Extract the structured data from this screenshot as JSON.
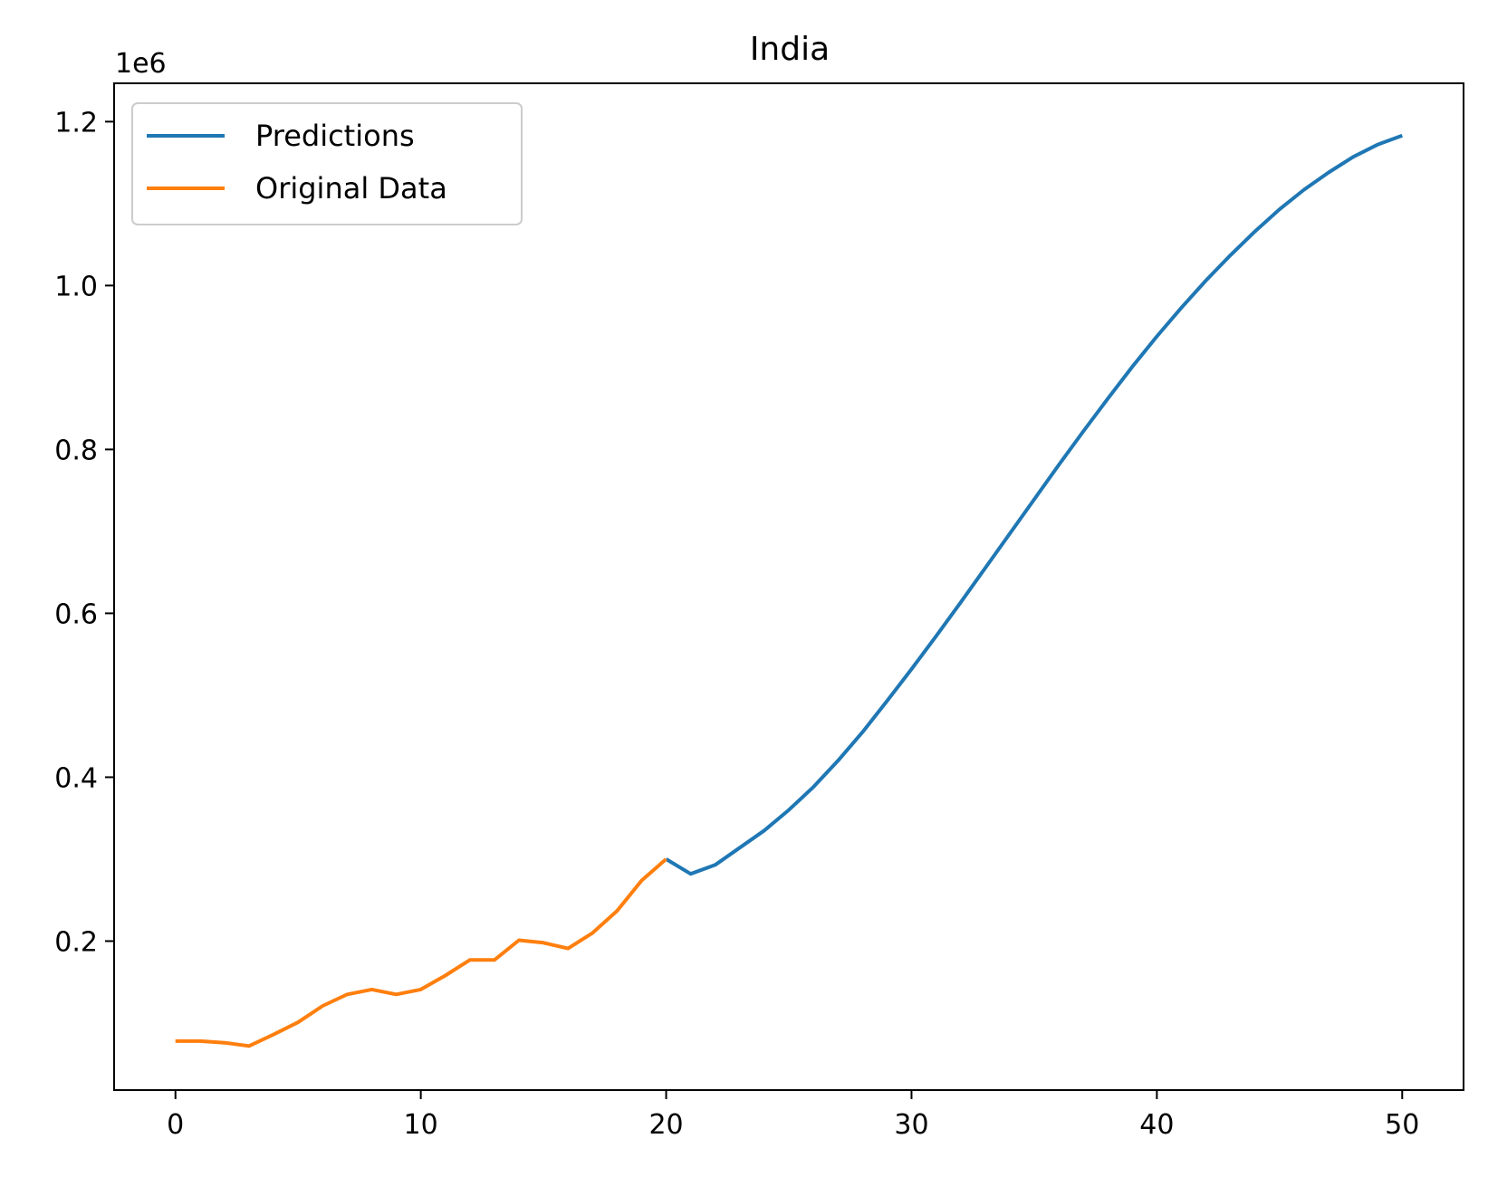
{
  "chart_data": {
    "type": "line",
    "title": "India",
    "xlabel": "",
    "ylabel": "",
    "y_offset_label": "1e6",
    "xlim": [
      -2.5,
      52.5
    ],
    "ylim": [
      0.0182,
      1.2468
    ],
    "x_ticks": [
      0,
      10,
      20,
      30,
      40,
      50
    ],
    "x_tick_labels": [
      "0",
      "10",
      "20",
      "30",
      "40",
      "50"
    ],
    "y_ticks": [
      0.2,
      0.4,
      0.6,
      0.8,
      1.0,
      1.2
    ],
    "y_tick_labels": [
      "0.2",
      "0.4",
      "0.6",
      "0.8",
      "1.0",
      "1.2"
    ],
    "grid": false,
    "legend_position": "top-left",
    "series": [
      {
        "name": "Predictions",
        "color": "#1f77b4",
        "x": [
          20,
          21,
          22,
          23,
          24,
          25,
          26,
          27,
          28,
          29,
          30,
          31,
          32,
          33,
          34,
          35,
          36,
          37,
          38,
          39,
          40,
          41,
          42,
          43,
          44,
          45,
          46,
          47,
          48,
          49,
          50
        ],
        "y": [
          0.3,
          0.282,
          0.293,
          0.314,
          0.335,
          0.36,
          0.388,
          0.42,
          0.455,
          0.493,
          0.532,
          0.572,
          0.613,
          0.655,
          0.697,
          0.739,
          0.781,
          0.822,
          0.862,
          0.901,
          0.938,
          0.973,
          1.006,
          1.037,
          1.066,
          1.093,
          1.117,
          1.138,
          1.157,
          1.172,
          1.183
        ]
      },
      {
        "name": "Original Data",
        "color": "#ff7f0e",
        "x": [
          0,
          1,
          2,
          3,
          4,
          5,
          6,
          7,
          8,
          9,
          10,
          11,
          12,
          13,
          14,
          15,
          16,
          17,
          18,
          19,
          20
        ],
        "y": [
          0.078,
          0.078,
          0.076,
          0.072,
          0.086,
          0.101,
          0.121,
          0.135,
          0.141,
          0.135,
          0.141,
          0.158,
          0.177,
          0.177,
          0.201,
          0.198,
          0.191,
          0.21,
          0.237,
          0.274,
          0.3
        ]
      }
    ]
  }
}
